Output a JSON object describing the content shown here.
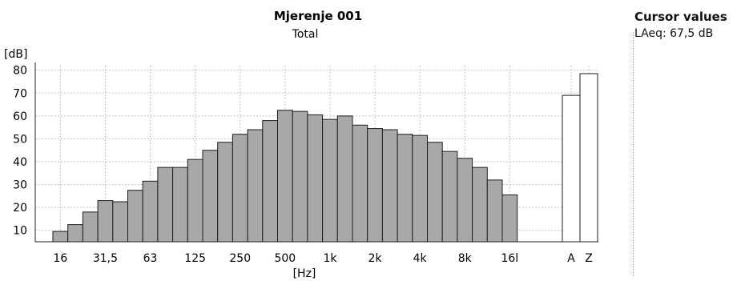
{
  "chart_data": {
    "type": "bar",
    "title": "Mjerenje 001",
    "subtitle": "Total",
    "ylabel": "[dB]",
    "xlabel": "[Hz]",
    "ylim": [
      5,
      82
    ],
    "yticks": [
      10,
      20,
      30,
      40,
      50,
      60,
      70,
      80
    ],
    "grid": true,
    "bar_color": "#a8a8a8",
    "total_bar_color": "#ffffff",
    "series": [
      {
        "values": [
          9.5,
          12.5,
          18,
          23,
          22.5,
          27.5,
          31.5,
          37.5,
          37.5,
          41,
          45,
          48.5,
          52,
          54,
          58,
          62.5,
          62,
          60.5,
          58.5,
          60,
          56,
          54.5,
          54,
          52,
          51.5,
          48.5,
          44.5,
          41.5,
          37.5,
          32,
          25.5
        ]
      }
    ],
    "band_tick_labels": [
      {
        "index": 0,
        "label": "16"
      },
      {
        "index": 3,
        "label": "31,5"
      },
      {
        "index": 6,
        "label": "63"
      },
      {
        "index": 9,
        "label": "125"
      },
      {
        "index": 12,
        "label": "250"
      },
      {
        "index": 15,
        "label": "500"
      },
      {
        "index": 18,
        "label": "1k"
      },
      {
        "index": 21,
        "label": "2k"
      },
      {
        "index": 24,
        "label": "4k"
      },
      {
        "index": 27,
        "label": "8k"
      },
      {
        "index": 30,
        "label": "16l"
      }
    ],
    "totals": [
      {
        "label": "A",
        "value": 69
      },
      {
        "label": "Z",
        "value": 78.5
      }
    ]
  },
  "cursor_panel": {
    "title": "Cursor values",
    "value": "LAeq: 67,5 dB"
  }
}
